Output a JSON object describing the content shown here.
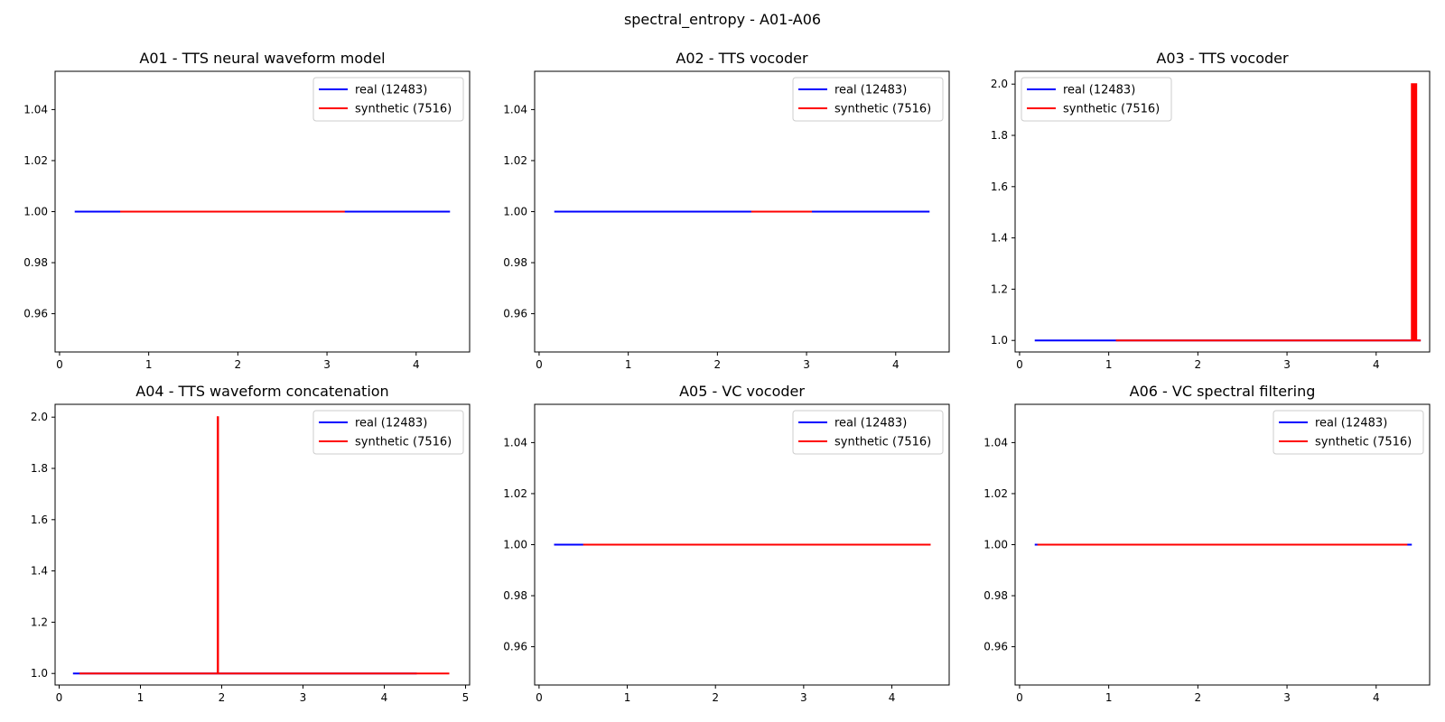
{
  "figure": {
    "title": "spectral_entropy - A01-A06"
  },
  "colors": {
    "real": "#0000ff",
    "synthetic": "#ff0000",
    "axis": "#000000"
  },
  "chart_data": [
    {
      "type": "line",
      "title": "A01 - TTS neural waveform model",
      "xlim": [
        -0.05,
        4.6
      ],
      "ylim": [
        0.945,
        1.055
      ],
      "xticks": [
        "0",
        "1",
        "2",
        "3",
        "4"
      ],
      "yticks": [
        "0.96",
        "0.98",
        "1.00",
        "1.02",
        "1.04"
      ],
      "legend": "upper right",
      "series": [
        {
          "name": "real (12483)",
          "color": "#0000ff",
          "points": [
            [
              0.17,
              1.0
            ],
            [
              4.38,
              1.0
            ]
          ]
        },
        {
          "name": "synthetic (7516)",
          "color": "#ff0000",
          "points": [
            [
              0.68,
              1.0
            ],
            [
              3.2,
              1.0
            ]
          ]
        }
      ]
    },
    {
      "type": "line",
      "title": "A02 - TTS vocoder",
      "xlim": [
        -0.05,
        4.6
      ],
      "ylim": [
        0.945,
        1.055
      ],
      "xticks": [
        "0",
        "1",
        "2",
        "3",
        "4"
      ],
      "yticks": [
        "0.96",
        "0.98",
        "1.00",
        "1.02",
        "1.04"
      ],
      "legend": "upper right",
      "series": [
        {
          "name": "real (12483)",
          "color": "#0000ff",
          "points": [
            [
              0.17,
              1.0
            ],
            [
              4.38,
              1.0
            ]
          ]
        },
        {
          "name": "synthetic (7516)",
          "color": "#ff0000",
          "points": [
            [
              2.38,
              1.0
            ],
            [
              3.06,
              1.0
            ]
          ]
        }
      ]
    },
    {
      "type": "line",
      "title": "A03 - TTS vocoder",
      "xlim": [
        -0.05,
        4.6
      ],
      "ylim": [
        0.955,
        2.05
      ],
      "xticks": [
        "0",
        "1",
        "2",
        "3",
        "4"
      ],
      "yticks": [
        "1.0",
        "1.2",
        "1.4",
        "1.6",
        "1.8",
        "2.0"
      ],
      "legend": "upper left",
      "series": [
        {
          "name": "real (12483)",
          "color": "#0000ff",
          "points": [
            [
              0.17,
              1.0
            ],
            [
              4.5,
              1.0
            ]
          ]
        },
        {
          "name": "synthetic (7516)",
          "color": "#ff0000",
          "points": [
            [
              1.08,
              1.0
            ],
            [
              4.4,
              1.0
            ],
            [
              4.4,
              2.0
            ],
            [
              4.41,
              2.0
            ],
            [
              4.41,
              1.0
            ],
            [
              4.42,
              1.0
            ],
            [
              4.42,
              2.0
            ],
            [
              4.43,
              2.0
            ],
            [
              4.43,
              1.0
            ],
            [
              4.44,
              1.0
            ],
            [
              4.44,
              2.0
            ],
            [
              4.45,
              2.0
            ],
            [
              4.45,
              1.0
            ],
            [
              4.5,
              1.0
            ]
          ]
        }
      ]
    },
    {
      "type": "line",
      "title": "A04 - TTS waveform concatenation",
      "xlim": [
        -0.05,
        5.05
      ],
      "ylim": [
        0.955,
        2.05
      ],
      "xticks": [
        "0",
        "1",
        "2",
        "3",
        "4",
        "5"
      ],
      "yticks": [
        "1.0",
        "1.2",
        "1.4",
        "1.6",
        "1.8",
        "2.0"
      ],
      "legend": "upper right",
      "series": [
        {
          "name": "real (12483)",
          "color": "#0000ff",
          "points": [
            [
              0.17,
              1.0
            ],
            [
              4.4,
              1.0
            ]
          ]
        },
        {
          "name": "synthetic (7516)",
          "color": "#ff0000",
          "points": [
            [
              0.25,
              1.0
            ],
            [
              1.95,
              1.0
            ],
            [
              1.95,
              2.0
            ],
            [
              1.955,
              2.0
            ],
            [
              1.955,
              1.0
            ],
            [
              4.8,
              1.0
            ]
          ]
        }
      ]
    },
    {
      "type": "line",
      "title": "A05 - VC vocoder",
      "xlim": [
        -0.05,
        4.65
      ],
      "ylim": [
        0.945,
        1.055
      ],
      "xticks": [
        "0",
        "1",
        "2",
        "3",
        "4"
      ],
      "yticks": [
        "0.96",
        "0.98",
        "1.00",
        "1.02",
        "1.04"
      ],
      "legend": "upper right",
      "series": [
        {
          "name": "real (12483)",
          "color": "#0000ff",
          "points": [
            [
              0.17,
              1.0
            ],
            [
              4.44,
              1.0
            ]
          ]
        },
        {
          "name": "synthetic (7516)",
          "color": "#ff0000",
          "points": [
            [
              0.5,
              1.0
            ],
            [
              4.44,
              1.0
            ]
          ]
        }
      ]
    },
    {
      "type": "line",
      "title": "A06 - VC spectral filtering",
      "xlim": [
        -0.05,
        4.6
      ],
      "ylim": [
        0.945,
        1.055
      ],
      "xticks": [
        "0",
        "1",
        "2",
        "3",
        "4"
      ],
      "yticks": [
        "0.96",
        "0.98",
        "1.00",
        "1.02",
        "1.04"
      ],
      "legend": "upper right",
      "series": [
        {
          "name": "real (12483)",
          "color": "#0000ff",
          "points": [
            [
              0.17,
              1.0
            ],
            [
              4.4,
              1.0
            ]
          ]
        },
        {
          "name": "synthetic (7516)",
          "color": "#ff0000",
          "points": [
            [
              0.2,
              1.0
            ],
            [
              4.35,
              1.0
            ]
          ]
        }
      ]
    }
  ]
}
